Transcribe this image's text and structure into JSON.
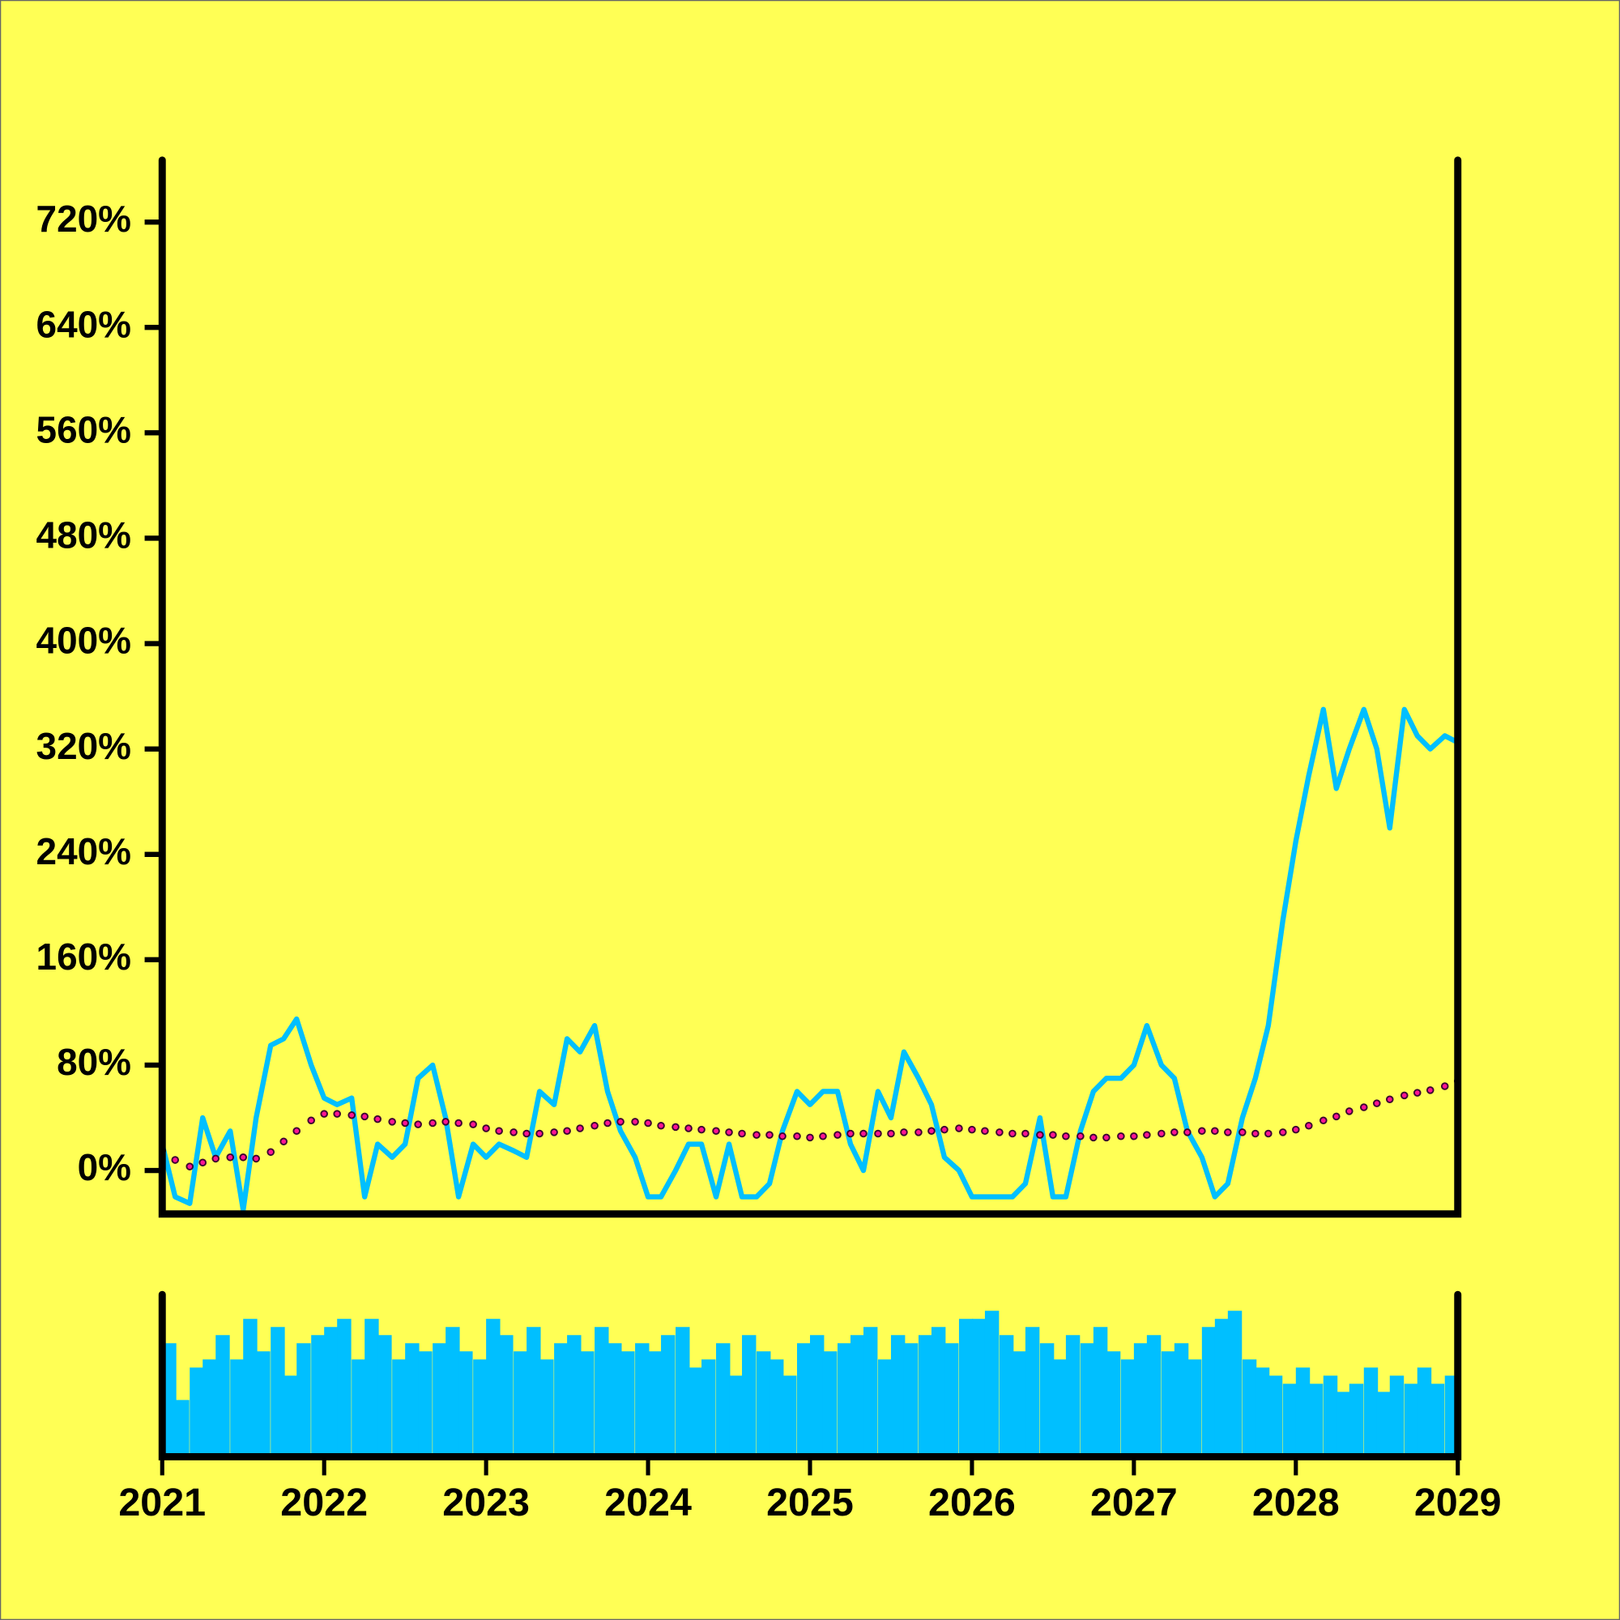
{
  "chart_data": [
    {
      "type": "line",
      "x": [
        2021,
        2021.08,
        2021.17,
        2021.25,
        2021.33,
        2021.42,
        2021.5,
        2021.58,
        2021.67,
        2021.75,
        2021.83,
        2021.92,
        2022,
        2022.08,
        2022.17,
        2022.25,
        2022.33,
        2022.42,
        2022.5,
        2022.58,
        2022.67,
        2022.75,
        2022.83,
        2022.92,
        2023,
        2023.08,
        2023.17,
        2023.25,
        2023.33,
        2023.42,
        2023.5,
        2023.58,
        2023.67,
        2023.75,
        2023.83,
        2023.92,
        2024,
        2024.08,
        2024.17,
        2024.25,
        2024.33,
        2024.42,
        2024.5,
        2024.58,
        2024.67,
        2024.75,
        2024.83,
        2024.92,
        2025,
        2025.08,
        2025.17,
        2025.25,
        2025.33,
        2025.42,
        2025.5,
        2025.58,
        2025.67,
        2025.75,
        2025.83,
        2025.92,
        2026,
        2026.08,
        2026.17,
        2026.25,
        2026.33,
        2026.42,
        2026.5,
        2026.58,
        2026.67,
        2026.75,
        2026.83,
        2026.92,
        2027,
        2027.08,
        2027.17,
        2027.25,
        2027.33,
        2027.42,
        2027.5,
        2027.58,
        2027.67,
        2027.75,
        2027.83,
        2027.92,
        2028,
        2028.08,
        2028.17,
        2028.25,
        2028.33,
        2028.42,
        2028.5,
        2028.58,
        2028.67,
        2028.75,
        2028.83,
        2028.92,
        2029
      ],
      "series": [
        {
          "color": "#00bfff",
          "style": "line",
          "values": [
            20,
            -20,
            -25,
            40,
            10,
            30,
            -30,
            40,
            95,
            100,
            115,
            80,
            55,
            50,
            55,
            -20,
            20,
            10,
            20,
            70,
            80,
            40,
            -20,
            20,
            10,
            20,
            15,
            10,
            60,
            50,
            100,
            90,
            110,
            60,
            30,
            10,
            -20,
            -20,
            0,
            20,
            20,
            -20,
            20,
            -20,
            -20,
            -10,
            30,
            60,
            50,
            60,
            60,
            20,
            0,
            60,
            40,
            90,
            70,
            50,
            10,
            0,
            -20,
            -20,
            -20,
            -20,
            -10,
            40,
            -20,
            -20,
            30,
            60,
            70,
            70,
            80,
            110,
            80,
            70,
            30,
            10,
            -20,
            -10,
            40,
            70,
            110,
            190,
            250,
            300,
            350,
            290,
            320,
            350,
            320,
            260,
            350,
            330,
            320,
            330,
            325
          ]
        },
        {
          "color": "#ff1493",
          "style": "dots",
          "values": [
            15,
            8,
            3,
            6,
            9,
            10,
            10,
            9,
            14,
            22,
            30,
            38,
            43,
            43,
            42,
            41,
            39,
            37,
            36,
            35,
            36,
            37,
            36,
            35,
            32,
            30,
            29,
            28,
            28,
            29,
            30,
            32,
            34,
            36,
            37,
            37,
            36,
            34,
            33,
            32,
            31,
            30,
            29,
            28,
            27,
            27,
            26,
            26,
            25,
            26,
            27,
            28,
            28,
            28,
            28,
            29,
            29,
            30,
            31,
            32,
            31,
            30,
            29,
            28,
            28,
            27,
            27,
            26,
            26,
            25,
            25,
            26,
            26,
            27,
            28,
            29,
            29,
            30,
            30,
            29,
            29,
            28,
            28,
            29,
            31,
            34,
            38,
            41,
            45,
            48,
            51,
            54,
            57,
            59,
            61,
            64,
            68
          ]
        }
      ],
      "xlim": [
        2021,
        2029
      ],
      "ylim": [
        -33,
        767
      ],
      "yticks": [
        {
          "value": 0,
          "label": "0%"
        },
        {
          "value": 80,
          "label": "80%"
        },
        {
          "value": 160,
          "label": "160%"
        },
        {
          "value": 240,
          "label": "240%"
        },
        {
          "value": 320,
          "label": "320%"
        },
        {
          "value": 400,
          "label": "400%"
        },
        {
          "value": 480,
          "label": "480%"
        },
        {
          "value": 560,
          "label": "560%"
        },
        {
          "value": 640,
          "label": "640%"
        },
        {
          "value": 720,
          "label": "720%"
        }
      ]
    },
    {
      "type": "bar",
      "x": [
        2021,
        2021.08,
        2021.17,
        2021.25,
        2021.33,
        2021.42,
        2021.5,
        2021.58,
        2021.67,
        2021.75,
        2021.83,
        2021.92,
        2022,
        2022.08,
        2022.17,
        2022.25,
        2022.33,
        2022.42,
        2022.5,
        2022.58,
        2022.67,
        2022.75,
        2022.83,
        2022.92,
        2023,
        2023.08,
        2023.17,
        2023.25,
        2023.33,
        2023.42,
        2023.5,
        2023.58,
        2023.67,
        2023.75,
        2023.83,
        2023.92,
        2024,
        2024.08,
        2024.17,
        2024.25,
        2024.33,
        2024.42,
        2024.5,
        2024.58,
        2024.67,
        2024.75,
        2024.83,
        2024.92,
        2025,
        2025.08,
        2025.17,
        2025.25,
        2025.33,
        2025.42,
        2025.5,
        2025.58,
        2025.67,
        2025.75,
        2025.83,
        2025.92,
        2026,
        2026.08,
        2026.17,
        2026.25,
        2026.33,
        2026.42,
        2026.5,
        2026.58,
        2026.67,
        2026.75,
        2026.83,
        2026.92,
        2027,
        2027.08,
        2027.17,
        2027.25,
        2027.33,
        2027.42,
        2027.5,
        2027.58,
        2027.67,
        2027.75,
        2027.83,
        2027.92,
        2028,
        2028.08,
        2028.17,
        2028.25,
        2028.33,
        2028.42,
        2028.5,
        2028.58,
        2028.67,
        2028.75,
        2028.83,
        2028.92,
        2029
      ],
      "values": [
        70,
        35,
        55,
        60,
        75,
        60,
        85,
        65,
        80,
        50,
        70,
        75,
        80,
        85,
        60,
        85,
        75,
        60,
        70,
        65,
        70,
        80,
        65,
        60,
        85,
        75,
        65,
        80,
        60,
        70,
        75,
        65,
        80,
        70,
        65,
        70,
        65,
        75,
        80,
        55,
        60,
        70,
        50,
        75,
        65,
        60,
        50,
        70,
        75,
        65,
        70,
        75,
        80,
        60,
        75,
        70,
        75,
        80,
        70,
        85,
        85,
        90,
        75,
        65,
        80,
        70,
        60,
        75,
        70,
        80,
        65,
        60,
        70,
        75,
        65,
        70,
        60,
        80,
        85,
        90,
        60,
        55,
        50,
        45,
        55,
        45,
        50,
        40,
        45,
        55,
        40,
        50,
        45,
        55,
        45,
        50,
        45
      ],
      "color": "#00bfff",
      "xlim": [
        2021,
        2029
      ],
      "ylim": [
        0,
        100
      ],
      "xticks": [
        2021,
        2022,
        2023,
        2024,
        2025,
        2026,
        2027,
        2028,
        2029
      ]
    }
  ]
}
